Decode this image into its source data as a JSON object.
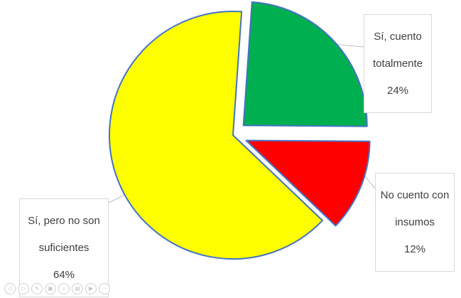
{
  "chart_data": {
    "type": "pie",
    "title": "",
    "slices": [
      {
        "label": "Sí, cuento totalmente",
        "value": 24,
        "percent_text": "24%",
        "color": "#00B050",
        "exploded": true
      },
      {
        "label": "No cuento con insumos",
        "value": 12,
        "percent_text": "12%",
        "color": "#FF0000",
        "exploded": true
      },
      {
        "label": "Sí, pero no son suficientes",
        "value": 64,
        "percent_text": "64%",
        "color": "#FFFF00",
        "exploded": false
      }
    ],
    "slice_border_color": "#4472C4",
    "legend": "none",
    "data_labels": "outside with leader lines"
  },
  "labels": {
    "green": {
      "line1": "Sí, cuento",
      "line2": "totalmente",
      "line3": "24%"
    },
    "red": {
      "line1": "No cuento con",
      "line2": "insumos",
      "line3": "12%"
    },
    "yellow": {
      "line1": "Sí, pero no son",
      "line2": "suficientes",
      "line3": "64%"
    }
  },
  "toolbar": {
    "buttons": [
      {
        "icon": "previous-icon",
        "glyph": "◁"
      },
      {
        "icon": "next-icon",
        "glyph": "▷"
      },
      {
        "icon": "pen-icon",
        "glyph": "✎"
      },
      {
        "icon": "slides-icon",
        "glyph": "▣"
      },
      {
        "icon": "zoom-icon",
        "glyph": "⌕"
      },
      {
        "icon": "subtitles-icon",
        "glyph": "▤"
      },
      {
        "icon": "camera-icon",
        "glyph": "▶"
      },
      {
        "icon": "more-icon",
        "glyph": "⋯"
      }
    ]
  }
}
